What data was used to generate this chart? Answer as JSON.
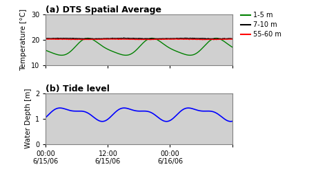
{
  "title_a": "(a) DTS Spatial Average",
  "title_b": "(b) Tide level",
  "ylabel_a": "Temperature [°C]",
  "ylabel_b": "Water Depth [m]",
  "ylim_a": [
    10,
    30
  ],
  "yticks_a": [
    10,
    20,
    30
  ],
  "ylim_b": [
    0,
    2
  ],
  "yticks_b": [
    0,
    1,
    2
  ],
  "legend_labels": [
    "1-5 m",
    "7-10 m",
    "55-60 m"
  ],
  "line_colors_a": [
    "green",
    "black",
    "red"
  ],
  "line_color_b": "blue",
  "bg_color": "#d0d0d0",
  "title_fontsize": 9,
  "axis_fontsize": 7.5,
  "tick_fontsize": 7
}
